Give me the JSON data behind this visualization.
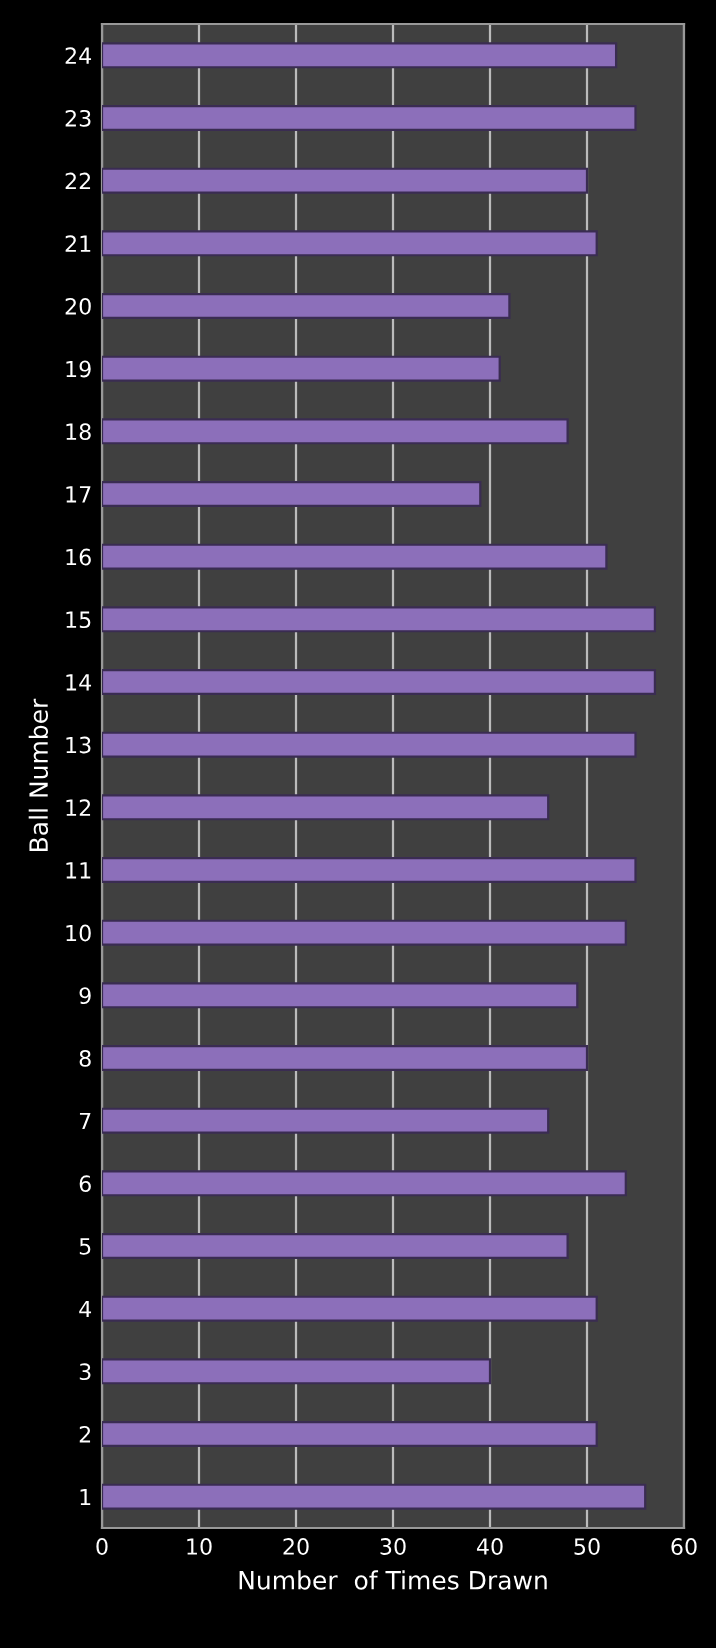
{
  "chart_data": {
    "type": "bar",
    "orientation": "horizontal",
    "xlabel": "Number  of Times Drawn",
    "ylabel": "Ball Number",
    "categories": [
      "24",
      "23",
      "22",
      "21",
      "20",
      "19",
      "18",
      "17",
      "16",
      "15",
      "14",
      "13",
      "12",
      "11",
      "10",
      "9",
      "8",
      "7",
      "6",
      "5",
      "4",
      "3",
      "2",
      "1"
    ],
    "values": [
      53,
      55,
      50,
      51,
      42,
      41,
      48,
      39,
      52,
      57,
      57,
      55,
      46,
      55,
      54,
      49,
      50,
      46,
      54,
      48,
      51,
      40,
      51,
      56
    ],
    "color": "#8c6fba",
    "xlim": [
      0,
      60
    ],
    "xticks": [
      0,
      10,
      20,
      30,
      40,
      50,
      60
    ],
    "grid": "x"
  }
}
